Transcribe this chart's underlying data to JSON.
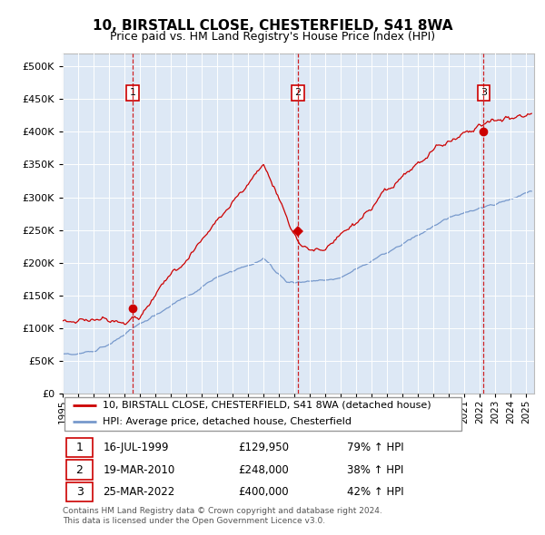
{
  "title": "10, BIRSTALL CLOSE, CHESTERFIELD, S41 8WA",
  "subtitle": "Price paid vs. HM Land Registry's House Price Index (HPI)",
  "yticks": [
    0,
    50000,
    100000,
    150000,
    200000,
    250000,
    300000,
    350000,
    400000,
    450000,
    500000
  ],
  "ylim": [
    0,
    520000
  ],
  "xlim_start": 1995.0,
  "xlim_end": 2025.5,
  "sale_dates": [
    1999.54,
    2010.22,
    2022.23
  ],
  "sale_prices": [
    129950,
    248000,
    400000
  ],
  "sale_labels": [
    "1",
    "2",
    "3"
  ],
  "sale_info": [
    {
      "label": "1",
      "date": "16-JUL-1999",
      "price": "£129,950",
      "change": "79% ↑ HPI"
    },
    {
      "label": "2",
      "date": "19-MAR-2010",
      "price": "£248,000",
      "change": "38% ↑ HPI"
    },
    {
      "label": "3",
      "date": "25-MAR-2022",
      "price": "£400,000",
      "change": "42% ↑ HPI"
    }
  ],
  "legend_line1": "10, BIRSTALL CLOSE, CHESTERFIELD, S41 8WA (detached house)",
  "legend_line2": "HPI: Average price, detached house, Chesterfield",
  "footer": "Contains HM Land Registry data © Crown copyright and database right 2024.\nThis data is licensed under the Open Government Licence v3.0.",
  "red_color": "#cc0000",
  "blue_color": "#7799cc",
  "chart_bg": "#dde8f5",
  "grid_color": "#ffffff"
}
